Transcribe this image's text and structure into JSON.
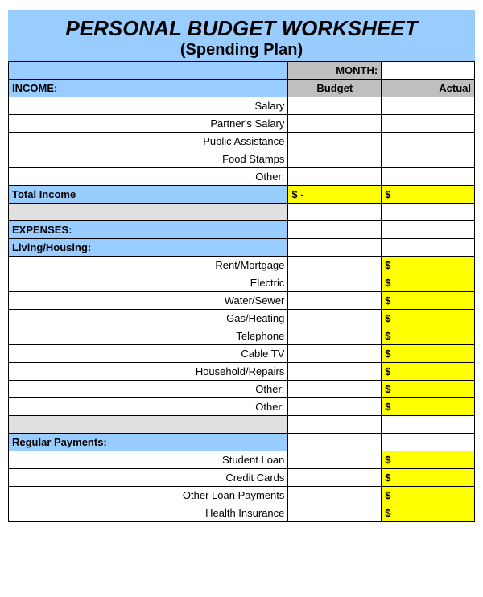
{
  "colors": {
    "header_bg": "#99ccff",
    "gray_bg": "#bfbfbf",
    "yellow_bg": "#ffff00",
    "spacer_bg": "#e0e0e0",
    "border": "#000000",
    "text": "#000000"
  },
  "title": "PERSONAL BUDGET WORKSHEET",
  "subtitle": "(Spending Plan)",
  "month_label": "MONTH:",
  "col_headers": {
    "budget": "Budget",
    "actual": "Actual"
  },
  "income": {
    "section": "INCOME:",
    "items": [
      "Salary",
      "Partner's Salary",
      "Public Assistance",
      "Food Stamps",
      "Other:"
    ],
    "total_label": "Total Income",
    "total_budget": "$            -",
    "total_actual": "$"
  },
  "expenses": {
    "section": "EXPENSES:",
    "living": {
      "header": "Living/Housing:",
      "items": [
        "Rent/Mortgage",
        "Electric",
        "Water/Sewer",
        "Gas/Heating",
        "Telephone",
        "Cable TV",
        "Household/Repairs",
        "Other:",
        "Other:"
      ]
    },
    "regular": {
      "header": "Regular Payments:",
      "items": [
        "Student Loan",
        "Credit Cards",
        "Other Loan Payments",
        "Health Insurance"
      ]
    }
  },
  "dollar": "$"
}
